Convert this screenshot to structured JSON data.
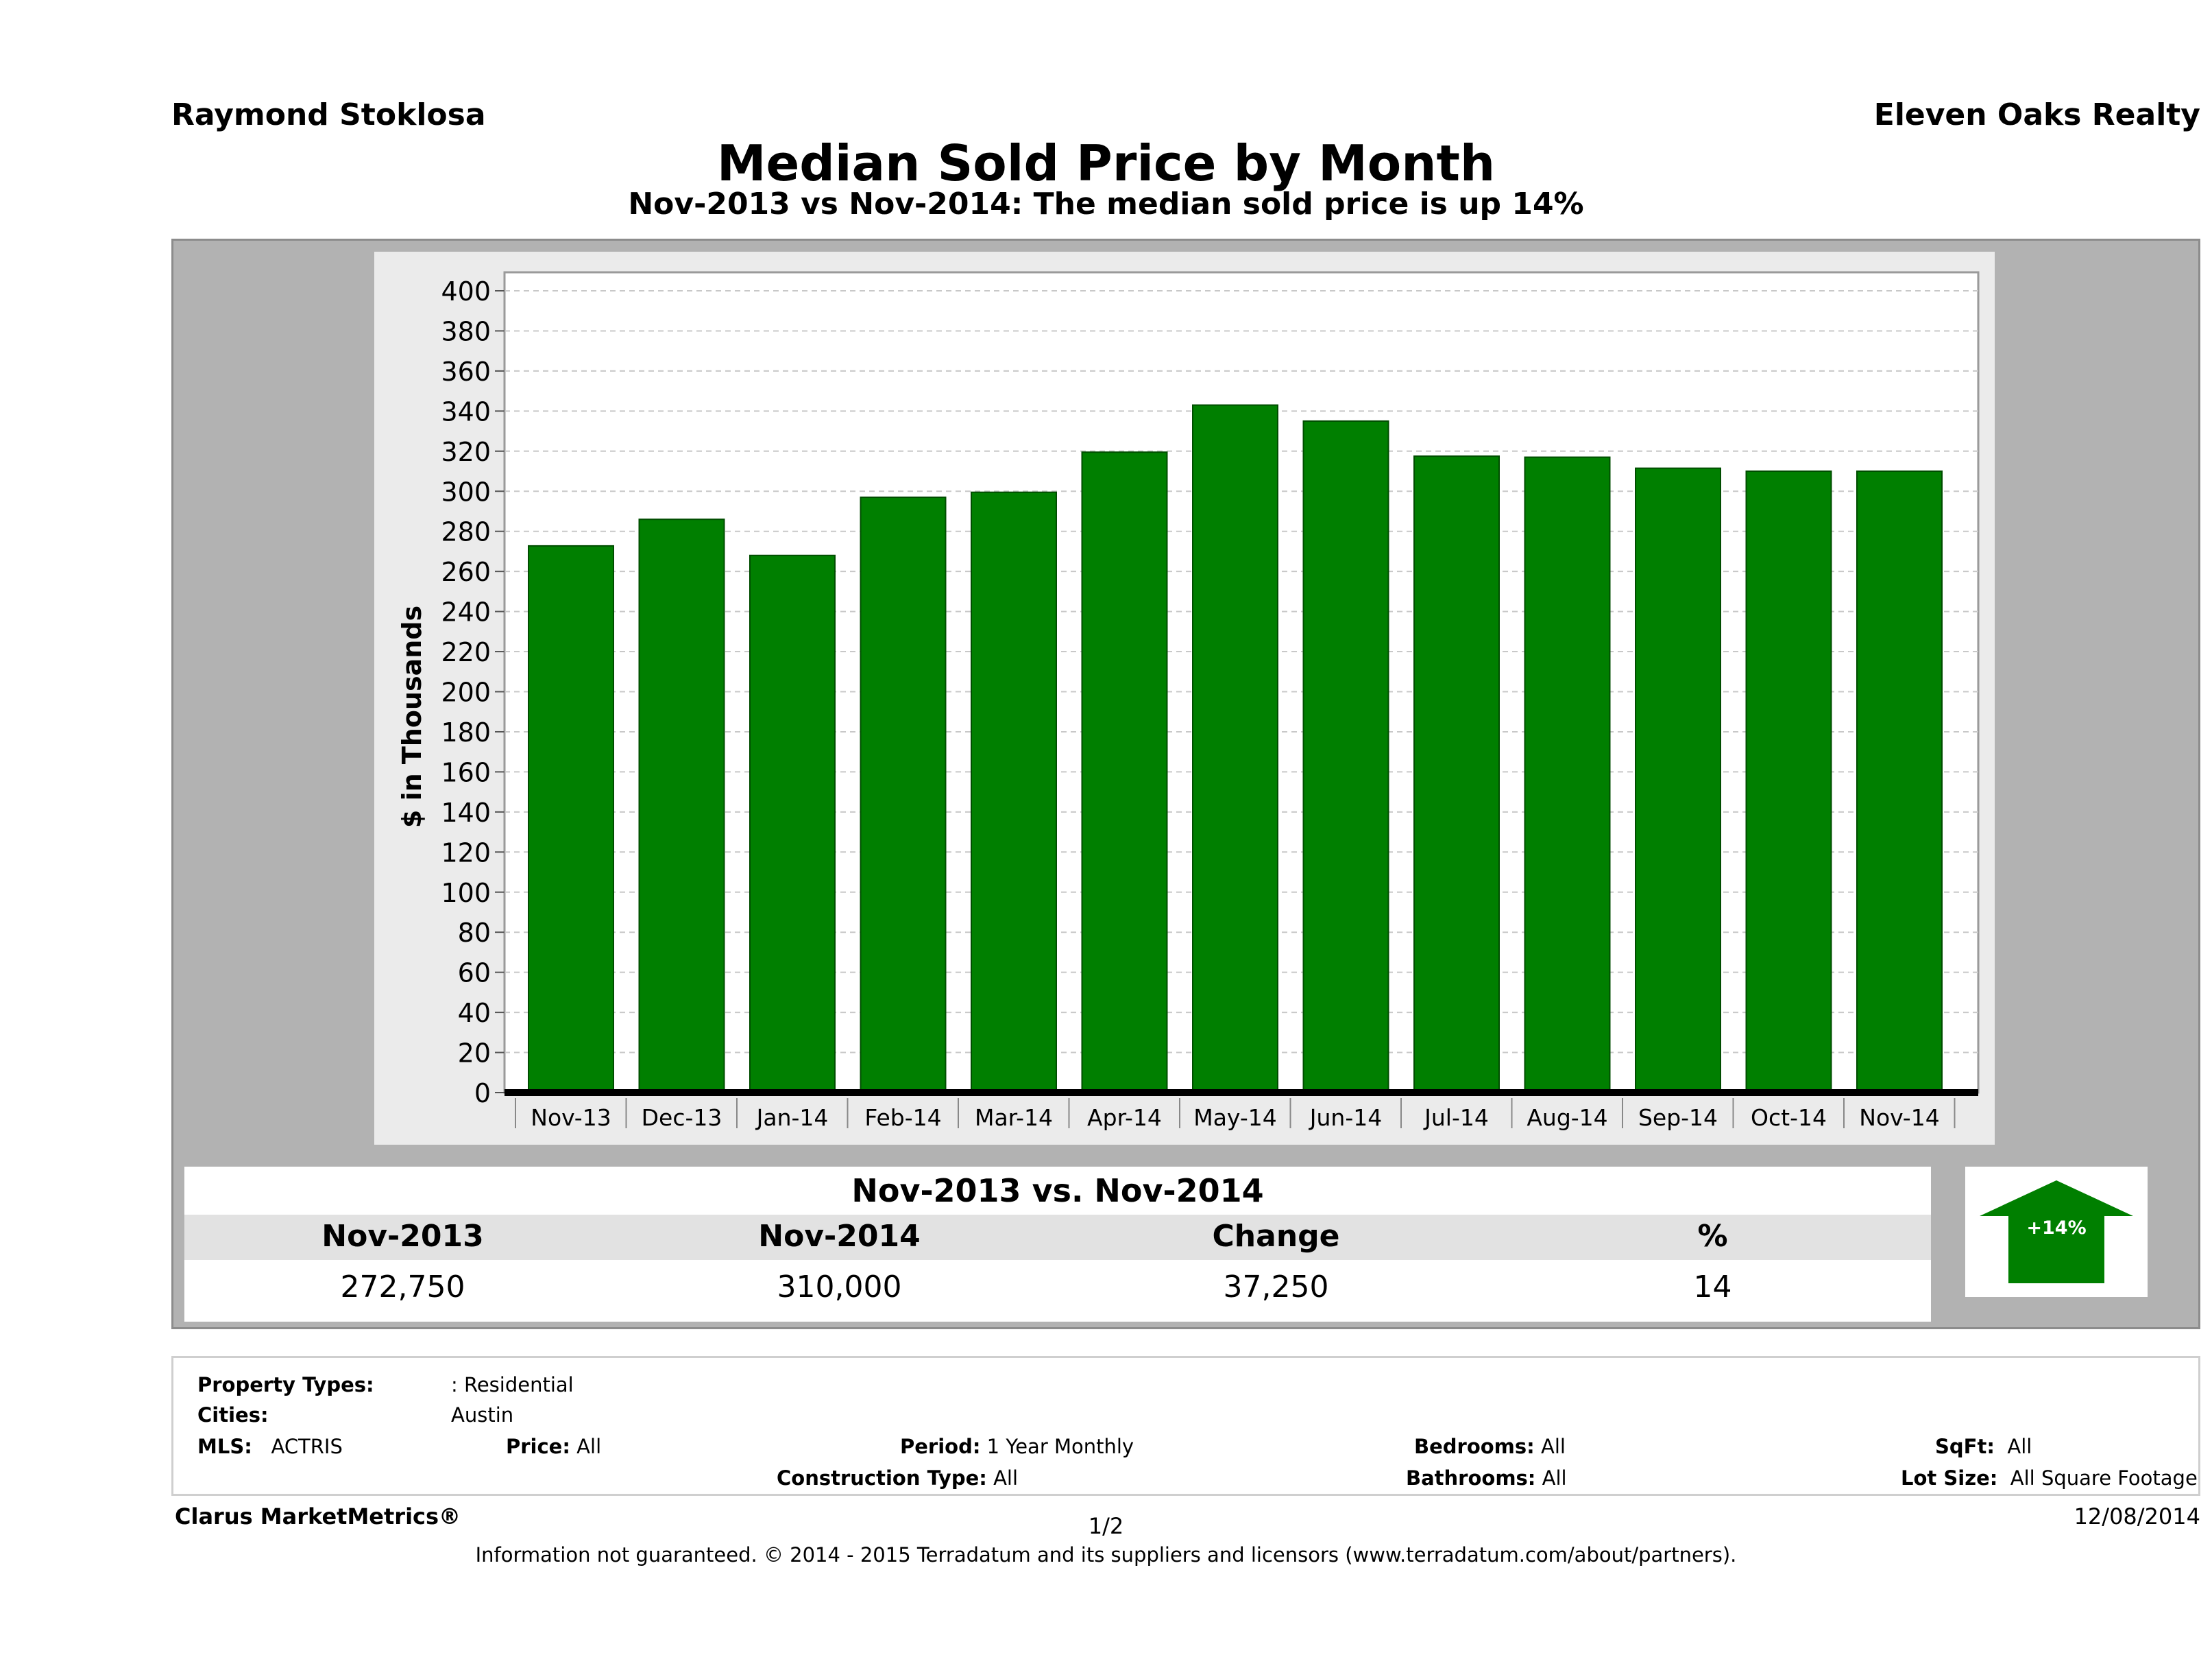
{
  "header": {
    "agent_name": "Raymond Stoklosa",
    "office_name": "Eleven Oaks Realty",
    "title": "Median Sold Price by Month",
    "subtitle": "Nov-2013 vs Nov-2014: The median sold price is up 14%"
  },
  "chart_data": {
    "type": "bar",
    "title": "",
    "xlabel": "",
    "ylabel": "$ in Thousands",
    "ylim": [
      0,
      400
    ],
    "yticks": [
      0,
      20,
      40,
      60,
      80,
      100,
      120,
      140,
      160,
      180,
      200,
      220,
      240,
      260,
      280,
      300,
      320,
      340,
      360,
      380,
      400
    ],
    "grid": true,
    "categories": [
      "Nov-13",
      "Dec-13",
      "Jan-14",
      "Feb-14",
      "Mar-14",
      "Apr-14",
      "May-14",
      "Jun-14",
      "Jul-14",
      "Aug-14",
      "Sep-14",
      "Oct-14",
      "Nov-14"
    ],
    "values": [
      272.75,
      286,
      268,
      297,
      299.5,
      319.5,
      343,
      335,
      317.5,
      317,
      311.5,
      310,
      310
    ],
    "bar_color": "#007f00"
  },
  "summary": {
    "title": "Nov-2013 vs. Nov-2014",
    "headers": [
      "Nov-2013",
      "Nov-2014",
      "Change",
      "%"
    ],
    "values": [
      "272,750",
      "310,000",
      "37,250",
      "14"
    ],
    "badge": "+14%",
    "badge_color": "#007f00"
  },
  "criteria": {
    "property_types_label": "Property Types:",
    "property_types_value": ": Residential",
    "cities_label": "Cities:",
    "cities_value": "Austin",
    "mls_label": "MLS:",
    "mls_value": "ACTRIS",
    "price_label": "Price:",
    "price_value": "All",
    "period_label": "Period:",
    "period_value": "1 Year Monthly",
    "bedrooms_label": "Bedrooms:",
    "bedrooms_value": "All",
    "sqft_label": "SqFt:",
    "sqft_value": "All",
    "construction_label": "Construction Type:",
    "construction_value": "All",
    "bathrooms_label": "Bathrooms:",
    "bathrooms_value": "All",
    "lotsize_label": "Lot Size:",
    "lotsize_value": "All Square Footage"
  },
  "footer": {
    "brand": "Clarus MarketMetrics®",
    "page": "1/2",
    "date": "12/08/2014",
    "disclaimer": "Information not guaranteed. © 2014 - 2015 Terradatum and its suppliers and licensors (www.terradatum.com/about/partners)."
  }
}
